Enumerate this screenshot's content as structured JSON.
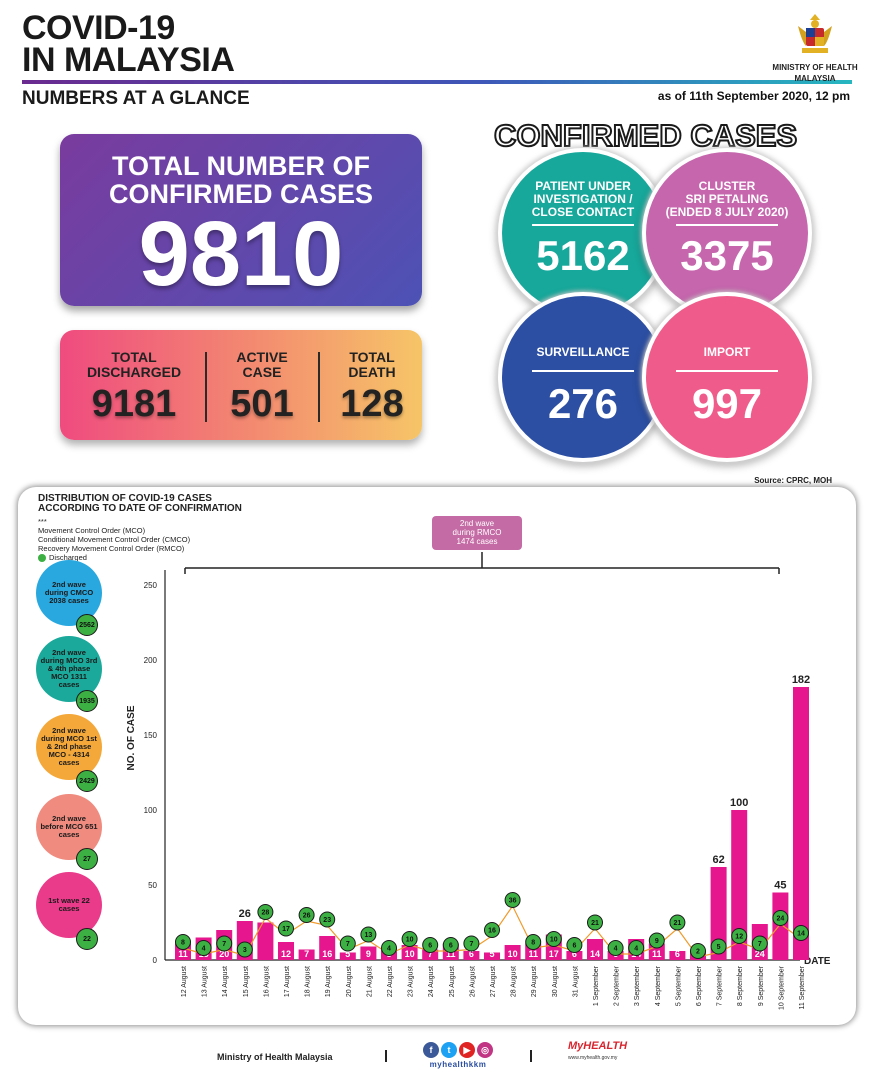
{
  "header": {
    "title_line1": "COVID-19",
    "title_line2": "IN MALAYSIA",
    "subtitle": "NUMBERS AT A GLANCE",
    "as_of": "as of 11th September 2020, 12 pm",
    "ministry_line1": "MINISTRY OF HEALTH",
    "ministry_line2": "MALAYSIA"
  },
  "total": {
    "label_line1": "TOTAL NUMBER OF",
    "label_line2": "CONFIRMED CASES",
    "value": "9810"
  },
  "stats": {
    "discharged_l1": "TOTAL",
    "discharged_l2": "DISCHARGED",
    "discharged_v": "9181",
    "active_l1": "ACTIVE",
    "active_l2": "CASE",
    "active_v": "501",
    "death_l1": "TOTAL",
    "death_l2": "DEATH",
    "death_v": "128"
  },
  "confirmed": {
    "title": "CONFIRMED CASES",
    "pui_l1": "PATIENT UNDER",
    "pui_l2": "INVESTIGATION /",
    "pui_l3": "CLOSE CONTACT",
    "pui_v": "5162",
    "cluster_l1": "CLUSTER",
    "cluster_l2": "SRI PETALING",
    "cluster_l3": "(ENDED 8 JULY 2020)",
    "cluster_v": "3375",
    "surv_l": "SURVEILLANCE",
    "surv_v": "276",
    "import_l": "IMPORT",
    "import_v": "997"
  },
  "source": "Source: CPRC, MOH",
  "chart_title_l1": "DISTRIBUTION OF COVID-19 CASES",
  "chart_title_l2": "ACCORDING TO DATE OF CONFIRMATION",
  "legend": {
    "stars": "***",
    "mco": "Movement Control Order (MCO)",
    "cmco": "Conditional Movement Control Order (CMCO)",
    "rmco": "Recovery Movement Control Order (RMCO)",
    "discharged": "Discharged"
  },
  "waves": [
    {
      "text": "2nd wave during CMCO 2038 cases",
      "badge": "2562",
      "color": "#29a8e0"
    },
    {
      "text": "2nd wave during MCO 3rd & 4th phase MCO 1311 cases",
      "badge": "1935",
      "color": "#1aa99a"
    },
    {
      "text": "2nd wave during MCO 1st & 2nd phase MCO - 4314 cases",
      "badge": "2429",
      "color": "#f4a83a"
    },
    {
      "text": "2nd wave before MCO 651 cases",
      "badge": "27",
      "color": "#ef8b7f"
    },
    {
      "text": "1st wave 22 cases",
      "badge": "22",
      "color": "#ea3a8a"
    }
  ],
  "rmco_box": {
    "l1": "2nd wave",
    "l2": "during RMCO",
    "l3": "1474 cases"
  },
  "chart_data": {
    "type": "bar",
    "title": "DISTRIBUTION OF COVID-19 CASES ACCORDING TO DATE OF CONFIRMATION",
    "xlabel": "DATE",
    "ylabel": "NO. OF CASE",
    "ylim": [
      0,
      260
    ],
    "yticks": [
      "0",
      "50",
      "100",
      "150",
      "200",
      "250"
    ],
    "categories": [
      "12 August",
      "13 August",
      "14 August",
      "15 August",
      "16 August",
      "17 August",
      "18 August",
      "19 August",
      "20 August",
      "21 August",
      "22 August",
      "23 August",
      "24 August",
      "25 August",
      "26 August",
      "27 August",
      "28 August",
      "29 August",
      "30 August",
      "31 August",
      "1 September",
      "2 September",
      "3 September",
      "4 September",
      "5 September",
      "6 September",
      "7 September",
      "8 September",
      "9 September",
      "10 September",
      "11 September"
    ],
    "series": [
      {
        "name": "Confirmed cases",
        "values": [
          11,
          15,
          20,
          26,
          25,
          12,
          7,
          16,
          5,
          9,
          8,
          10,
          7,
          11,
          6,
          5,
          10,
          11,
          17,
          6,
          14,
          6,
          14,
          11,
          6,
          6,
          62,
          100,
          24,
          45,
          182
        ]
      },
      {
        "name": "Discharged",
        "values": [
          8,
          4,
          7,
          3,
          28,
          17,
          26,
          23,
          7,
          13,
          4,
          10,
          6,
          6,
          7,
          16,
          36,
          8,
          10,
          6,
          21,
          4,
          4,
          9,
          21,
          2,
          5,
          12,
          7,
          24,
          14
        ]
      }
    ]
  },
  "footer": {
    "moh": "Ministry of Health Malaysia",
    "handle": "myhealthkkm",
    "myhealth": "MyHEALTH",
    "myhealth_url": "www.myhealth.gov.my"
  }
}
